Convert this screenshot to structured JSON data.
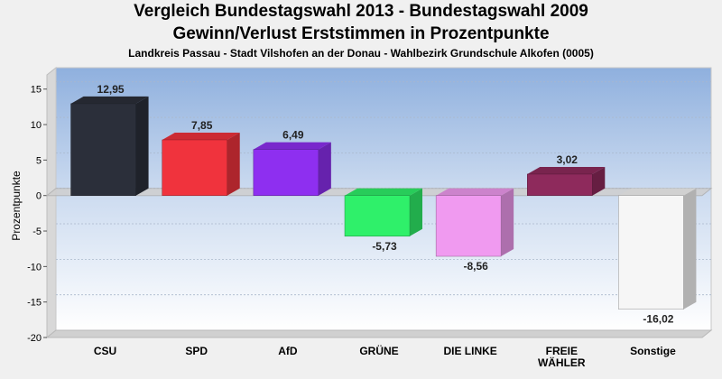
{
  "chart_data": {
    "type": "bar",
    "title": "Vergleich Bundestagswahl 2013 - Bundestagswahl 2009",
    "title2": "Gewinn/Verlust Erststimmen in Prozentpunkte",
    "subtitle": "Landkreis Passau - Stadt Vilshofen an der Donau - Wahlbezirk Grundschule Alkofen (0005)",
    "ylabel": "Prozentpunkte",
    "xlabel": "",
    "ylim": [
      -20,
      17
    ],
    "yticks": [
      15,
      10,
      5,
      0,
      -5,
      -10,
      -15,
      -20
    ],
    "categories": [
      "CSU",
      "SPD",
      "AfD",
      "GRÜNE",
      "DIE LINKE",
      "FREIE WÄHLER",
      "Sonstige"
    ],
    "category_lines": [
      [
        "CSU"
      ],
      [
        "SPD"
      ],
      [
        "AfD"
      ],
      [
        "GRÜNE"
      ],
      [
        "DIE LINKE"
      ],
      [
        "FREIE",
        "WÄHLER"
      ],
      [
        "Sonstige"
      ]
    ],
    "values": [
      12.95,
      7.85,
      6.49,
      -5.73,
      -8.56,
      3.02,
      -16.02
    ],
    "value_labels": [
      "12,95",
      "7,85",
      "6,49",
      "-5,73",
      "-8,56",
      "3,02",
      "-16,02"
    ],
    "colors": [
      "#2b2f3a",
      "#f0333d",
      "#8e2ff0",
      "#2ff06a",
      "#f09af0",
      "#8e2a5c",
      "#f6f6f6"
    ],
    "grid": true,
    "legend": "none"
  }
}
